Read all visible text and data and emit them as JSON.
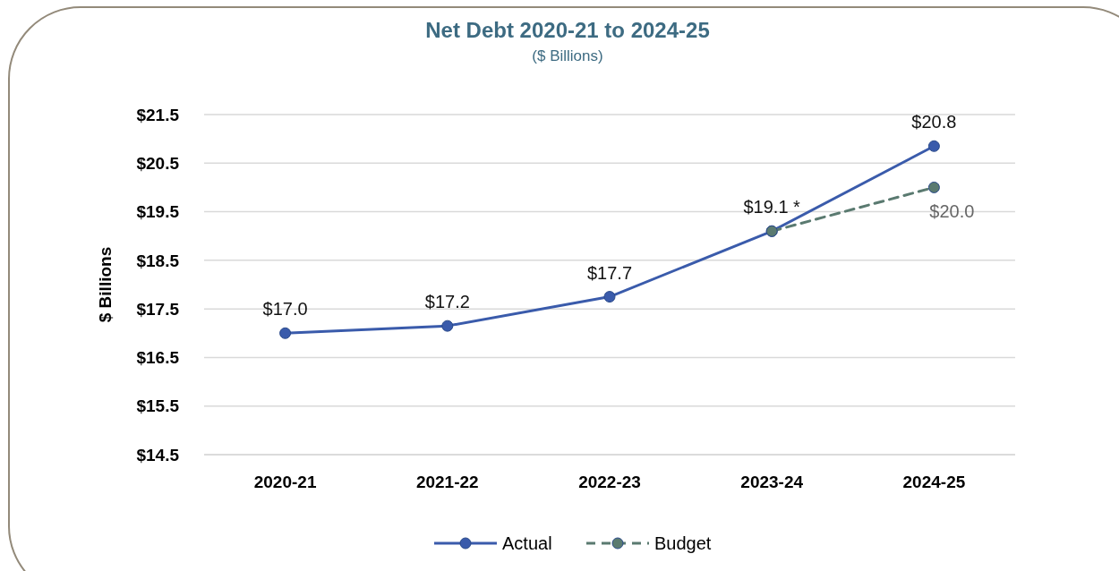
{
  "chart_data": {
    "type": "line",
    "title": "Net Debt 2020-21 to 2024-25",
    "subtitle": "($ Billions)",
    "ylabel": "$ Billions",
    "categories": [
      "2020-21",
      "2021-22",
      "2022-23",
      "2023-24",
      "2024-25"
    ],
    "series": [
      {
        "name": "Actual",
        "color": "#3a5bab",
        "values": [
          17.0,
          17.15,
          17.75,
          19.1,
          20.85
        ],
        "value_labels": [
          "$17.0",
          "$17.2",
          "$17.7",
          "$19.1 *",
          "$20.8"
        ],
        "line_style": "solid"
      },
      {
        "name": "Budget",
        "color": "#5a7a70",
        "values": [
          null,
          null,
          null,
          19.1,
          20.0
        ],
        "value_labels": [
          null,
          null,
          null,
          null,
          "$20.0"
        ],
        "line_style": "dashed"
      }
    ],
    "ylim": [
      14.5,
      21.5
    ],
    "yticks": [
      {
        "value": 14.5,
        "label": "$14.5"
      },
      {
        "value": 15.5,
        "label": "$15.5"
      },
      {
        "value": 16.5,
        "label": "$16.5"
      },
      {
        "value": 17.5,
        "label": "$17.5"
      },
      {
        "value": 18.5,
        "label": "$18.5"
      },
      {
        "value": 19.5,
        "label": "$19.5"
      },
      {
        "value": 20.5,
        "label": "$20.5"
      },
      {
        "value": 21.5,
        "label": "$21.5"
      }
    ],
    "grid": "y",
    "legend": "bottom",
    "marker": "circle"
  }
}
